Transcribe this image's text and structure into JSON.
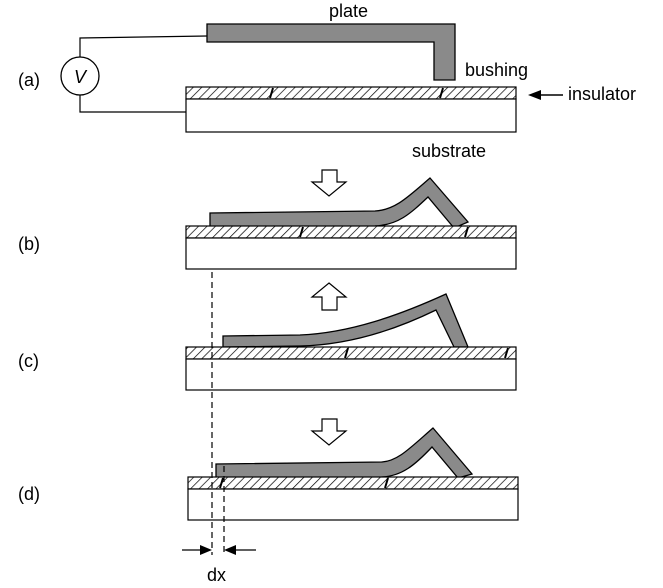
{
  "labels": {
    "plate": "plate",
    "bushing": "bushing",
    "insulator": "insulator",
    "substrate": "substrate",
    "voltmeter": "V",
    "dx": "dx"
  },
  "panels": [
    {
      "id": "a",
      "label": "(a)"
    },
    {
      "id": "b",
      "label": "(b)",
      "arrow": "down"
    },
    {
      "id": "c",
      "label": "(c)",
      "arrow": "up"
    },
    {
      "id": "d",
      "label": "(d)",
      "arrow": "down"
    }
  ],
  "colors": {
    "plate_fill": "#8a8a8a",
    "outline": "#000000",
    "substrate_fill": "#ffffff",
    "background": "#ffffff"
  }
}
